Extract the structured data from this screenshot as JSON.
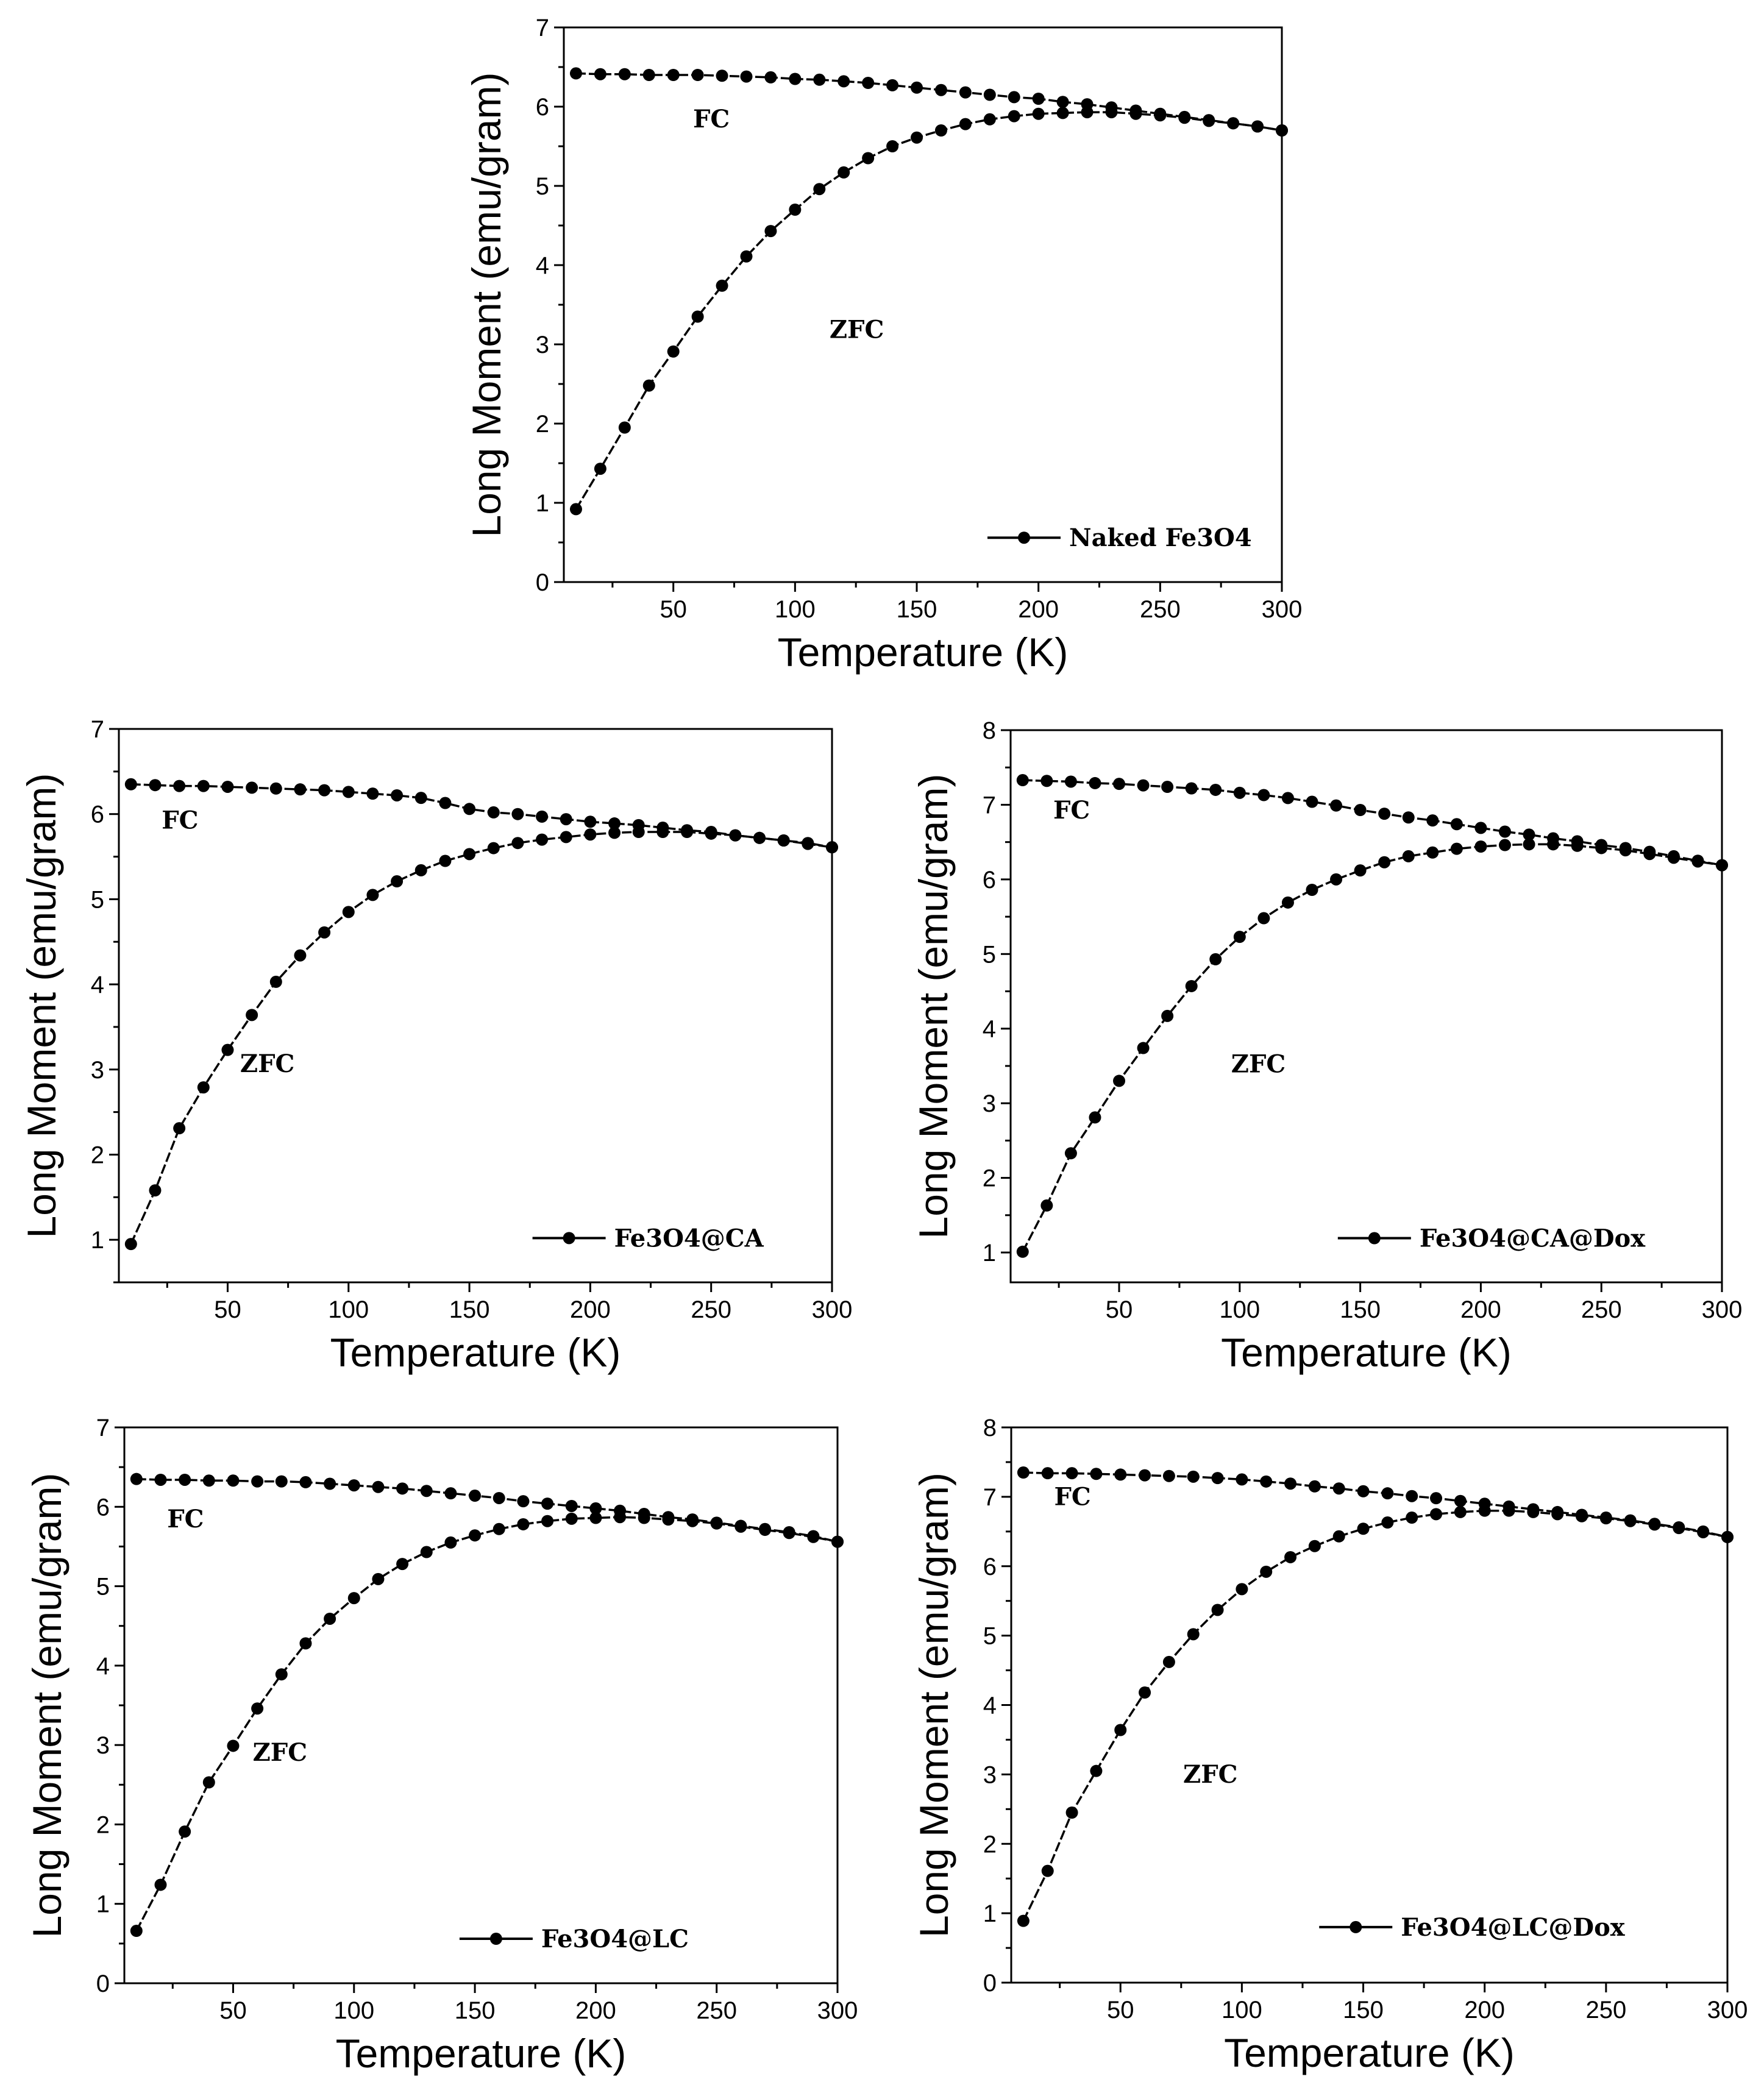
{
  "chart_data": [
    {
      "type": "line",
      "legend": "Naked Fe3O4",
      "xlabel": "Temperature (K)",
      "ylabel": "Long Moment (emu/gram)",
      "xlim": [
        5,
        300
      ],
      "ylim": [
        0,
        7
      ],
      "xticks": [
        50,
        100,
        150,
        200,
        250,
        300
      ],
      "yticks": [
        0,
        1,
        2,
        3,
        4,
        5,
        6,
        7
      ],
      "annotations": [
        "FC",
        "ZFC"
      ],
      "series": [
        {
          "name": "FC",
          "x": [
            10,
            20,
            30,
            40,
            50,
            60,
            70,
            80,
            90,
            100,
            110,
            120,
            130,
            140,
            150,
            160,
            170,
            180,
            190,
            200,
            210,
            220,
            230,
            240,
            250,
            260,
            270,
            280,
            290,
            300
          ],
          "values": [
            6.42,
            6.41,
            6.41,
            6.4,
            6.4,
            6.4,
            6.39,
            6.38,
            6.37,
            6.35,
            6.34,
            6.32,
            6.3,
            6.27,
            6.24,
            6.21,
            6.18,
            6.15,
            6.12,
            6.1,
            6.06,
            6.03,
            5.99,
            5.95,
            5.91,
            5.87,
            5.83,
            5.79,
            5.75,
            5.7
          ]
        },
        {
          "name": "ZFC",
          "x": [
            10,
            20,
            30,
            40,
            50,
            60,
            70,
            80,
            90,
            100,
            110,
            120,
            130,
            140,
            150,
            160,
            170,
            180,
            190,
            200,
            210,
            220,
            230,
            240,
            250,
            260,
            270,
            280,
            290,
            300
          ],
          "values": [
            0.92,
            1.43,
            1.95,
            2.48,
            2.91,
            3.35,
            3.74,
            4.11,
            4.43,
            4.7,
            4.96,
            5.17,
            5.35,
            5.5,
            5.61,
            5.7,
            5.78,
            5.84,
            5.88,
            5.91,
            5.92,
            5.93,
            5.93,
            5.91,
            5.89,
            5.86,
            5.82,
            5.79,
            5.75,
            5.7
          ]
        }
      ]
    },
    {
      "type": "line",
      "legend": "Fe3O4@CA",
      "xlabel": "Temperature (K)",
      "ylabel": "Long Moment (emu/gram)",
      "xlim": [
        5,
        300
      ],
      "ylim": [
        0.5,
        7
      ],
      "xticks": [
        50,
        100,
        150,
        200,
        250,
        300
      ],
      "yticks": [
        1,
        2,
        3,
        4,
        5,
        6,
        7
      ],
      "annotations": [
        "FC",
        "ZFC"
      ],
      "series": [
        {
          "name": "FC",
          "x": [
            10,
            20,
            30,
            40,
            50,
            60,
            70,
            80,
            90,
            100,
            110,
            120,
            130,
            140,
            150,
            160,
            170,
            180,
            190,
            200,
            210,
            220,
            230,
            240,
            250,
            260,
            270,
            280,
            290,
            300
          ],
          "values": [
            6.35,
            6.34,
            6.33,
            6.33,
            6.32,
            6.31,
            6.3,
            6.29,
            6.28,
            6.26,
            6.24,
            6.22,
            6.19,
            6.13,
            6.06,
            6.02,
            6.0,
            5.97,
            5.94,
            5.91,
            5.89,
            5.87,
            5.84,
            5.81,
            5.79,
            5.75,
            5.72,
            5.69,
            5.65,
            5.61
          ]
        },
        {
          "name": "ZFC",
          "x": [
            10,
            20,
            30,
            40,
            50,
            60,
            70,
            80,
            90,
            100,
            110,
            120,
            130,
            140,
            150,
            160,
            170,
            180,
            190,
            200,
            210,
            220,
            230,
            240,
            250,
            260,
            270,
            280,
            290,
            300
          ],
          "values": [
            0.95,
            1.58,
            2.31,
            2.79,
            3.23,
            3.64,
            4.03,
            4.34,
            4.61,
            4.85,
            5.05,
            5.21,
            5.34,
            5.45,
            5.53,
            5.6,
            5.66,
            5.7,
            5.73,
            5.76,
            5.78,
            5.79,
            5.79,
            5.79,
            5.77,
            5.75,
            5.72,
            5.69,
            5.66,
            5.61
          ]
        }
      ]
    },
    {
      "type": "line",
      "legend": "Fe3O4@CA@Dox",
      "xlabel": "Temperature (K)",
      "ylabel": "Long Moment (emu/gram)",
      "xlim": [
        5,
        300
      ],
      "ylim": [
        0.6,
        8
      ],
      "xticks": [
        50,
        100,
        150,
        200,
        250,
        300
      ],
      "yticks": [
        1,
        2,
        3,
        4,
        5,
        6,
        7,
        8
      ],
      "annotations": [
        "FC",
        "ZFC"
      ],
      "series": [
        {
          "name": "FC",
          "x": [
            10,
            20,
            30,
            40,
            50,
            60,
            70,
            80,
            90,
            100,
            110,
            120,
            130,
            140,
            150,
            160,
            170,
            180,
            190,
            200,
            210,
            220,
            230,
            240,
            250,
            260,
            270,
            280,
            290,
            300
          ],
          "values": [
            7.33,
            7.32,
            7.31,
            7.29,
            7.28,
            7.26,
            7.24,
            7.22,
            7.2,
            7.16,
            7.13,
            7.09,
            7.04,
            6.99,
            6.93,
            6.88,
            6.83,
            6.79,
            6.74,
            6.69,
            6.64,
            6.6,
            6.55,
            6.51,
            6.46,
            6.42,
            6.37,
            6.31,
            6.25,
            6.19
          ]
        },
        {
          "name": "ZFC",
          "x": [
            10,
            20,
            30,
            40,
            50,
            60,
            70,
            80,
            90,
            100,
            110,
            120,
            130,
            140,
            150,
            160,
            170,
            180,
            190,
            200,
            210,
            220,
            230,
            240,
            250,
            260,
            270,
            280,
            290,
            300
          ],
          "values": [
            1.01,
            1.63,
            2.33,
            2.81,
            3.3,
            3.74,
            4.17,
            4.57,
            4.93,
            5.23,
            5.48,
            5.69,
            5.86,
            6.0,
            6.12,
            6.23,
            6.31,
            6.36,
            6.41,
            6.44,
            6.46,
            6.47,
            6.47,
            6.45,
            6.42,
            6.39,
            6.34,
            6.29,
            6.24,
            6.19
          ]
        }
      ]
    },
    {
      "type": "line",
      "legend": "Fe3O4@LC",
      "xlabel": "Temperature (K)",
      "ylabel": "Long Moment (emu/gram)",
      "xlim": [
        5,
        300
      ],
      "ylim": [
        0,
        7
      ],
      "xticks": [
        50,
        100,
        150,
        200,
        250,
        300
      ],
      "yticks": [
        0,
        1,
        2,
        3,
        4,
        5,
        6,
        7
      ],
      "annotations": [
        "FC",
        "ZFC"
      ],
      "series": [
        {
          "name": "FC",
          "x": [
            10,
            20,
            30,
            40,
            50,
            60,
            70,
            80,
            90,
            100,
            110,
            120,
            130,
            140,
            150,
            160,
            170,
            180,
            190,
            200,
            210,
            220,
            230,
            240,
            250,
            260,
            270,
            280,
            290,
            300
          ],
          "values": [
            6.35,
            6.34,
            6.34,
            6.33,
            6.33,
            6.32,
            6.32,
            6.31,
            6.29,
            6.27,
            6.25,
            6.23,
            6.2,
            6.17,
            6.14,
            6.11,
            6.07,
            6.04,
            6.01,
            5.98,
            5.95,
            5.91,
            5.87,
            5.84,
            5.8,
            5.76,
            5.72,
            5.68,
            5.63,
            5.56
          ]
        },
        {
          "name": "ZFC",
          "x": [
            10,
            20,
            30,
            40,
            50,
            60,
            70,
            80,
            90,
            100,
            110,
            120,
            130,
            140,
            150,
            160,
            170,
            180,
            190,
            200,
            210,
            220,
            230,
            240,
            250,
            260,
            270,
            280,
            290,
            300
          ],
          "values": [
            0.66,
            1.24,
            1.91,
            2.53,
            2.99,
            3.46,
            3.89,
            4.28,
            4.59,
            4.85,
            5.09,
            5.28,
            5.43,
            5.55,
            5.64,
            5.72,
            5.78,
            5.82,
            5.85,
            5.86,
            5.87,
            5.86,
            5.84,
            5.82,
            5.79,
            5.75,
            5.71,
            5.67,
            5.62,
            5.56
          ]
        }
      ]
    },
    {
      "type": "line",
      "legend": "Fe3O4@LC@Dox",
      "xlabel": "Temperature (K)",
      "ylabel": "Long Moment (emu/gram)",
      "xlim": [
        5,
        300
      ],
      "ylim": [
        0,
        8
      ],
      "xticks": [
        50,
        100,
        150,
        200,
        250,
        300
      ],
      "yticks": [
        0,
        1,
        2,
        3,
        4,
        5,
        6,
        7,
        8
      ],
      "annotations": [
        "FC",
        "ZFC"
      ],
      "series": [
        {
          "name": "FC",
          "x": [
            10,
            20,
            30,
            40,
            50,
            60,
            70,
            80,
            90,
            100,
            110,
            120,
            130,
            140,
            150,
            160,
            170,
            180,
            190,
            200,
            210,
            220,
            230,
            240,
            250,
            260,
            270,
            280,
            290,
            300
          ],
          "values": [
            7.35,
            7.34,
            7.34,
            7.33,
            7.32,
            7.31,
            7.3,
            7.29,
            7.27,
            7.25,
            7.22,
            7.19,
            7.15,
            7.12,
            7.08,
            7.05,
            7.01,
            6.98,
            6.94,
            6.9,
            6.86,
            6.82,
            6.78,
            6.74,
            6.7,
            6.66,
            6.61,
            6.56,
            6.5,
            6.42
          ]
        },
        {
          "name": "ZFC",
          "x": [
            10,
            20,
            30,
            40,
            50,
            60,
            70,
            80,
            90,
            100,
            110,
            120,
            130,
            140,
            150,
            160,
            170,
            180,
            190,
            200,
            210,
            220,
            230,
            240,
            250,
            260,
            270,
            280,
            290,
            300
          ],
          "values": [
            0.89,
            1.61,
            2.45,
            3.05,
            3.64,
            4.18,
            4.62,
            5.02,
            5.37,
            5.67,
            5.92,
            6.13,
            6.29,
            6.43,
            6.54,
            6.63,
            6.7,
            6.75,
            6.78,
            6.8,
            6.8,
            6.78,
            6.75,
            6.72,
            6.69,
            6.65,
            6.6,
            6.55,
            6.49,
            6.42
          ]
        }
      ]
    }
  ]
}
